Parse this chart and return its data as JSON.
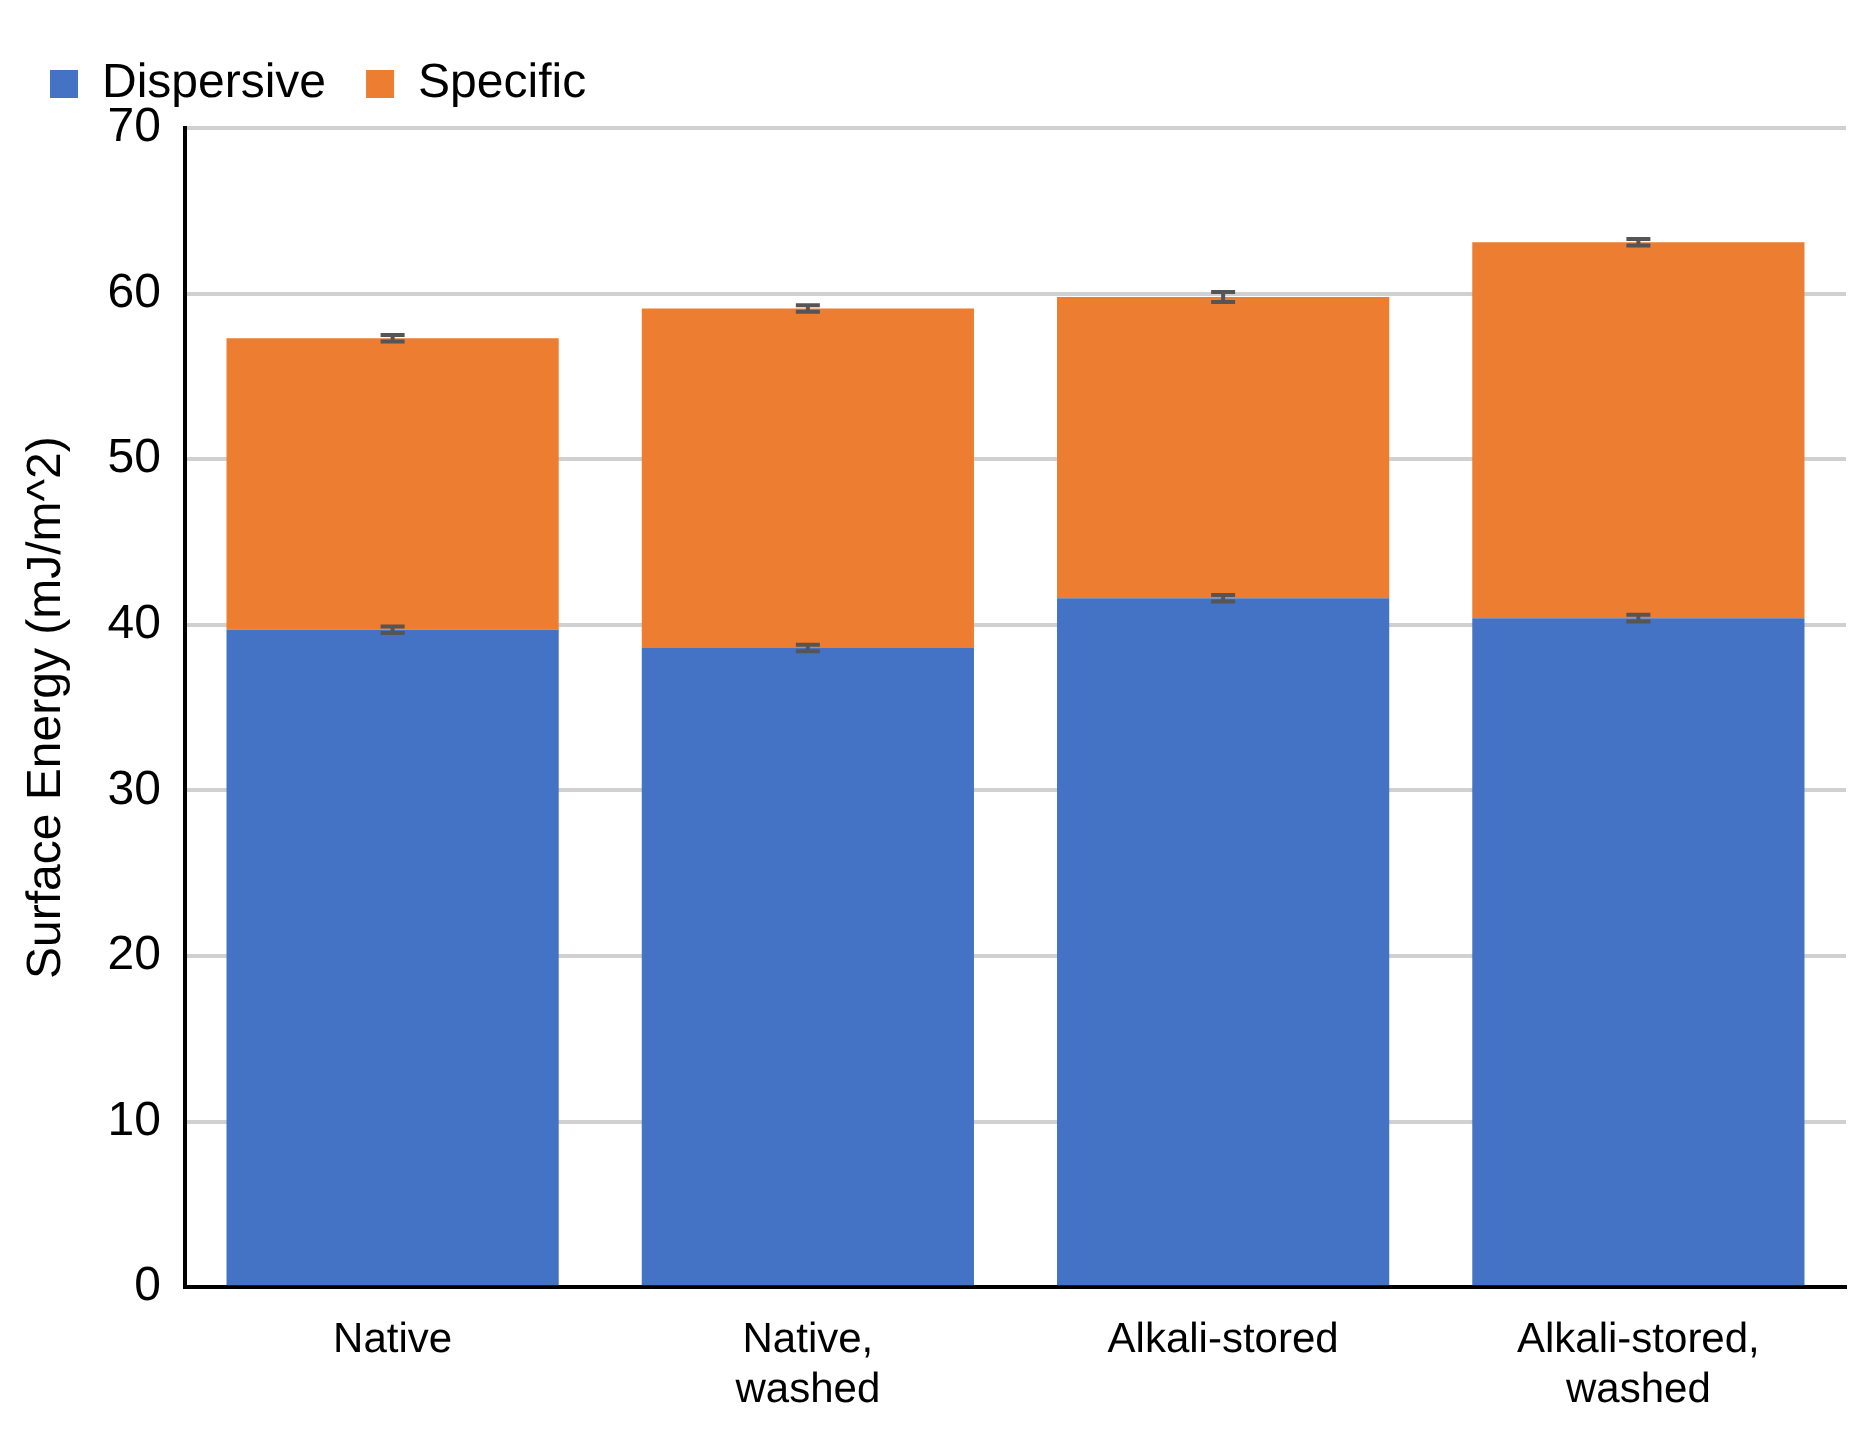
{
  "chart_data": {
    "type": "bar",
    "ylabel": "Surface Energy (mJ/m^2)",
    "categories": [
      "Native",
      "Native, washed",
      "Alkali-stored",
      "Alkali-stored, washed"
    ],
    "stacked": true,
    "ylim": [
      0,
      70
    ],
    "yticks": [
      0,
      10,
      20,
      30,
      40,
      50,
      60,
      70
    ],
    "grid": "y",
    "legend": "top left",
    "series": [
      {
        "name": "Dispersive",
        "color": "#4472c4",
        "values": [
          39.7,
          38.6,
          41.6,
          40.4
        ],
        "errors": [
          0.2,
          0.2,
          0.2,
          0.2
        ]
      },
      {
        "name": "Specific",
        "color": "#ed7d31",
        "values": [
          17.6,
          20.5,
          18.2,
          22.7
        ],
        "errors": [
          0.2,
          0.2,
          0.3,
          0.2
        ]
      }
    ]
  }
}
